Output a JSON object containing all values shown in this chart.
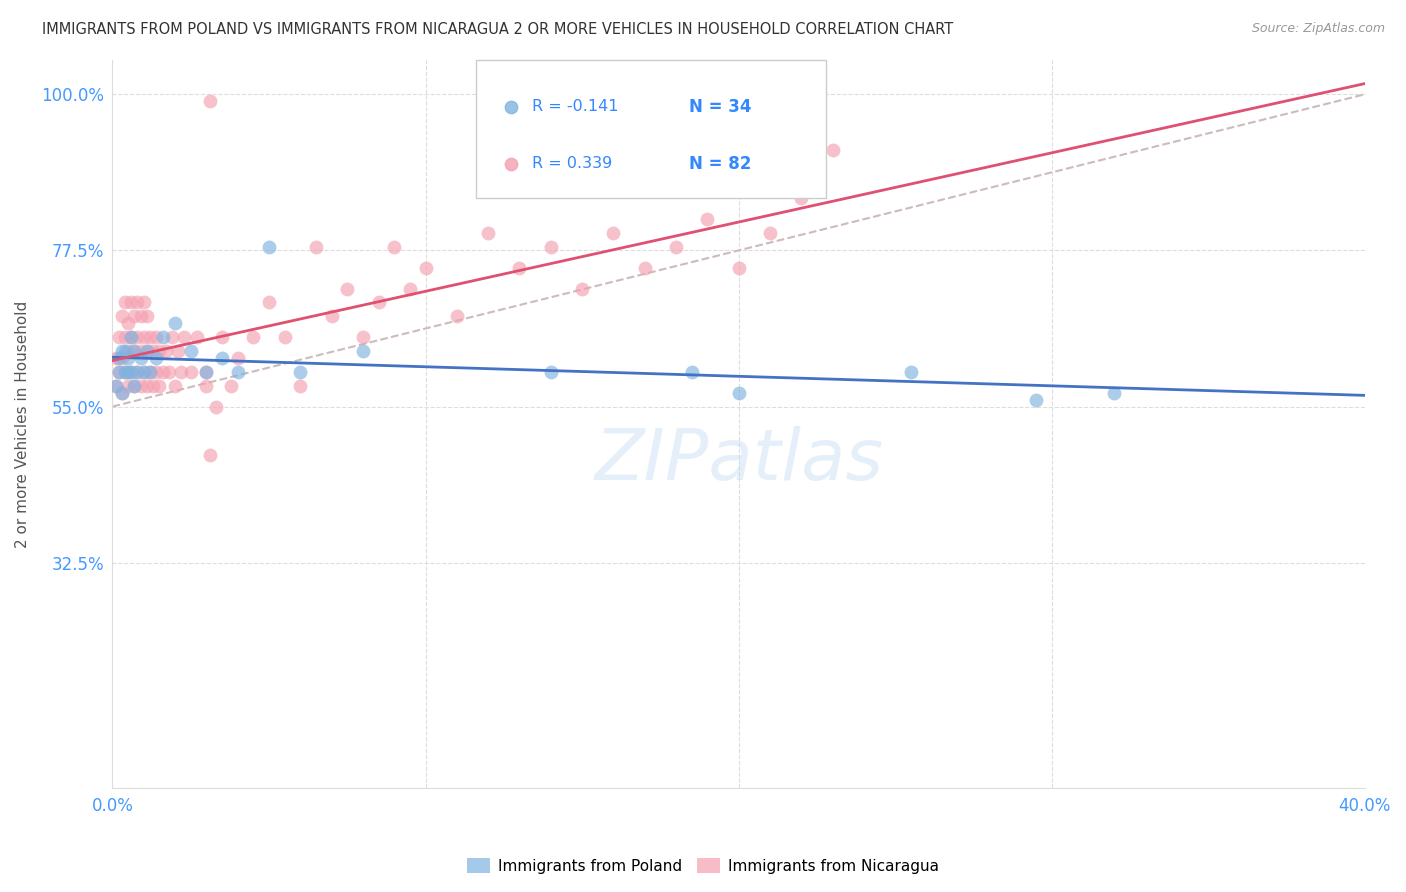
{
  "title": "IMMIGRANTS FROM POLAND VS IMMIGRANTS FROM NICARAGUA 2 OR MORE VEHICLES IN HOUSEHOLD CORRELATION CHART",
  "source": "Source: ZipAtlas.com",
  "ylabel": "2 or more Vehicles in Household",
  "xlim": [
    0.0,
    0.4
  ],
  "ylim": [
    0.0,
    1.05
  ],
  "yticks": [
    0.325,
    0.55,
    0.775,
    1.0
  ],
  "ytick_labels": [
    "32.5%",
    "55.0%",
    "77.5%",
    "100.0%"
  ],
  "xticks": [
    0.0,
    0.1,
    0.2,
    0.3,
    0.4
  ],
  "xtick_labels": [
    "0.0%",
    "",
    "",
    "",
    "40.0%"
  ],
  "poland_R": -0.141,
  "poland_N": 34,
  "nicaragua_R": 0.339,
  "nicaragua_N": 82,
  "poland_color": "#7EB3E0",
  "nicaragua_color": "#F4A0B0",
  "poland_line_color": "#4472C4",
  "nicaragua_line_color": "#E05070",
  "diagonal_color": "#CCBBBB",
  "watermark": "ZIPatlas",
  "poland_x": [
    0.001,
    0.002,
    0.002,
    0.003,
    0.003,
    0.004,
    0.004,
    0.005,
    0.005,
    0.006,
    0.006,
    0.007,
    0.007,
    0.008,
    0.009,
    0.01,
    0.011,
    0.012,
    0.014,
    0.016,
    0.02,
    0.025,
    0.03,
    0.035,
    0.04,
    0.05,
    0.06,
    0.08,
    0.2,
    0.255,
    0.295,
    0.32,
    0.185,
    0.14
  ],
  "poland_y": [
    0.58,
    0.6,
    0.62,
    0.57,
    0.63,
    0.6,
    0.63,
    0.62,
    0.6,
    0.65,
    0.6,
    0.63,
    0.58,
    0.6,
    0.62,
    0.6,
    0.63,
    0.6,
    0.62,
    0.65,
    0.67,
    0.63,
    0.6,
    0.62,
    0.6,
    0.78,
    0.6,
    0.63,
    0.57,
    0.6,
    0.56,
    0.57,
    0.6,
    0.6
  ],
  "nicaragua_x": [
    0.001,
    0.001,
    0.002,
    0.002,
    0.003,
    0.003,
    0.003,
    0.004,
    0.004,
    0.004,
    0.005,
    0.005,
    0.005,
    0.006,
    0.006,
    0.006,
    0.007,
    0.007,
    0.007,
    0.008,
    0.008,
    0.008,
    0.009,
    0.009,
    0.009,
    0.01,
    0.01,
    0.01,
    0.011,
    0.011,
    0.011,
    0.012,
    0.012,
    0.013,
    0.013,
    0.014,
    0.014,
    0.015,
    0.015,
    0.016,
    0.017,
    0.018,
    0.019,
    0.02,
    0.021,
    0.022,
    0.023,
    0.025,
    0.027,
    0.03,
    0.03,
    0.031,
    0.033,
    0.035,
    0.038,
    0.04,
    0.045,
    0.05,
    0.055,
    0.06,
    0.065,
    0.07,
    0.075,
    0.08,
    0.085,
    0.09,
    0.095,
    0.1,
    0.11,
    0.12,
    0.13,
    0.14,
    0.15,
    0.16,
    0.17,
    0.18,
    0.19,
    0.2,
    0.21,
    0.22,
    0.23,
    0.031
  ],
  "nicaragua_y": [
    0.58,
    0.62,
    0.6,
    0.65,
    0.57,
    0.62,
    0.68,
    0.6,
    0.65,
    0.7,
    0.58,
    0.63,
    0.67,
    0.6,
    0.65,
    0.7,
    0.58,
    0.63,
    0.68,
    0.6,
    0.65,
    0.7,
    0.58,
    0.63,
    0.68,
    0.6,
    0.65,
    0.7,
    0.58,
    0.63,
    0.68,
    0.6,
    0.65,
    0.58,
    0.63,
    0.6,
    0.65,
    0.58,
    0.63,
    0.6,
    0.63,
    0.6,
    0.65,
    0.58,
    0.63,
    0.6,
    0.65,
    0.6,
    0.65,
    0.58,
    0.6,
    0.99,
    0.55,
    0.65,
    0.58,
    0.62,
    0.65,
    0.7,
    0.65,
    0.58,
    0.78,
    0.68,
    0.72,
    0.65,
    0.7,
    0.78,
    0.72,
    0.75,
    0.68,
    0.8,
    0.75,
    0.78,
    0.72,
    0.8,
    0.75,
    0.78,
    0.82,
    0.75,
    0.8,
    0.85,
    0.92,
    0.48
  ]
}
